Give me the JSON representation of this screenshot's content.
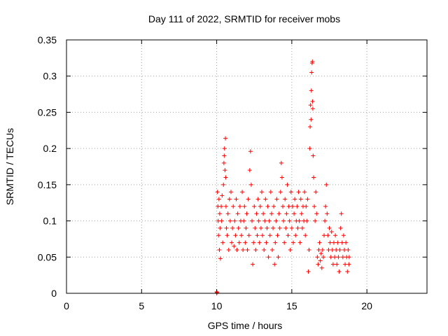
{
  "chart_data": {
    "type": "scatter",
    "title": "Day 111 of 2022, SRMTID for receiver mobs",
    "xlabel": "GPS time / hours",
    "ylabel": "SRMTID / TECUs",
    "xlim": [
      0,
      24
    ],
    "ylim": [
      0,
      0.35
    ],
    "xticks": [
      0,
      5,
      10,
      15,
      20
    ],
    "xtick_labels": [
      "0",
      "5",
      "10",
      "15",
      "20"
    ],
    "yticks": [
      0,
      0.05,
      0.1,
      0.15,
      0.2,
      0.25,
      0.3,
      0.35
    ],
    "ytick_labels": [
      "0",
      "0.05",
      "0.1",
      "0.15",
      "0.2",
      "0.25",
      "0.3",
      "0.35"
    ],
    "grid": true,
    "marker": "plus",
    "marker_color": "#ff0000",
    "series": [
      {
        "name": "SRMTID",
        "points": [
          [
            10.0,
            0.0
          ],
          [
            10.0,
            0.002
          ],
          [
            10.02,
            0.001
          ],
          [
            10.05,
            0.14
          ],
          [
            10.08,
            0.12
          ],
          [
            10.1,
            0.1
          ],
          [
            10.12,
            0.08
          ],
          [
            10.15,
            0.13
          ],
          [
            10.18,
            0.06
          ],
          [
            10.2,
            0.11
          ],
          [
            10.22,
            0.09
          ],
          [
            10.25,
            0.048
          ],
          [
            10.3,
            0.12
          ],
          [
            10.33,
            0.1
          ],
          [
            10.36,
            0.135
          ],
          [
            10.4,
            0.07
          ],
          [
            10.45,
            0.15
          ],
          [
            10.48,
            0.18
          ],
          [
            10.5,
            0.19
          ],
          [
            10.52,
            0.2
          ],
          [
            10.55,
            0.17
          ],
          [
            10.58,
            0.214
          ],
          [
            10.6,
            0.16
          ],
          [
            10.62,
            0.12
          ],
          [
            10.65,
            0.09
          ],
          [
            10.7,
            0.08
          ],
          [
            10.75,
            0.11
          ],
          [
            10.8,
            0.06
          ],
          [
            10.85,
            0.13
          ],
          [
            10.9,
            0.1
          ],
          [
            10.95,
            0.14
          ],
          [
            11.0,
            0.07
          ],
          [
            11.05,
            0.09
          ],
          [
            11.1,
            0.12
          ],
          [
            11.15,
            0.065
          ],
          [
            11.2,
            0.1
          ],
          [
            11.25,
            0.08
          ],
          [
            11.3,
            0.13
          ],
          [
            11.35,
            0.06
          ],
          [
            11.4,
            0.11
          ],
          [
            11.45,
            0.09
          ],
          [
            11.5,
            0.07
          ],
          [
            11.55,
            0.12
          ],
          [
            11.6,
            0.1
          ],
          [
            11.65,
            0.08
          ],
          [
            11.7,
            0.14
          ],
          [
            11.75,
            0.06
          ],
          [
            11.8,
            0.1
          ],
          [
            11.85,
            0.12
          ],
          [
            11.9,
            0.07
          ],
          [
            11.95,
            0.09
          ],
          [
            12.0,
            0.11
          ],
          [
            12.05,
            0.06
          ],
          [
            12.1,
            0.13
          ],
          [
            12.15,
            0.08
          ],
          [
            12.2,
            0.17
          ],
          [
            12.25,
            0.196
          ],
          [
            12.3,
            0.15
          ],
          [
            12.35,
            0.1
          ],
          [
            12.4,
            0.04
          ],
          [
            12.45,
            0.07
          ],
          [
            12.5,
            0.12
          ],
          [
            12.55,
            0.09
          ],
          [
            12.6,
            0.06
          ],
          [
            12.65,
            0.11
          ],
          [
            12.7,
            0.08
          ],
          [
            12.75,
            0.13
          ],
          [
            12.8,
            0.1
          ],
          [
            12.85,
            0.07
          ],
          [
            12.9,
            0.12
          ],
          [
            12.95,
            0.09
          ],
          [
            13.0,
            0.14
          ],
          [
            13.05,
            0.08
          ],
          [
            13.1,
            0.11
          ],
          [
            13.15,
            0.06
          ],
          [
            13.2,
            0.1
          ],
          [
            13.25,
            0.13
          ],
          [
            13.3,
            0.07
          ],
          [
            13.35,
            0.09
          ],
          [
            13.4,
            0.12
          ],
          [
            13.45,
            0.05
          ],
          [
            13.5,
            0.1
          ],
          [
            13.55,
            0.08
          ],
          [
            13.6,
            0.14
          ],
          [
            13.65,
            0.11
          ],
          [
            13.7,
            0.06
          ],
          [
            13.75,
            0.09
          ],
          [
            13.8,
            0.12
          ],
          [
            13.85,
            0.04
          ],
          [
            13.9,
            0.07
          ],
          [
            13.95,
            0.1
          ],
          [
            14.0,
            0.13
          ],
          [
            14.05,
            0.08
          ],
          [
            14.1,
            0.05
          ],
          [
            14.15,
            0.11
          ],
          [
            14.2,
            0.09
          ],
          [
            14.25,
            0.14
          ],
          [
            14.3,
            0.18
          ],
          [
            14.35,
            0.16
          ],
          [
            14.4,
            0.12
          ],
          [
            14.45,
            0.1
          ],
          [
            14.5,
            0.07
          ],
          [
            14.55,
            0.13
          ],
          [
            14.6,
            0.09
          ],
          [
            14.65,
            0.11
          ],
          [
            14.7,
            0.15
          ],
          [
            14.75,
            0.08
          ],
          [
            14.8,
            0.12
          ],
          [
            14.85,
            0.1
          ],
          [
            14.9,
            0.06
          ],
          [
            14.95,
            0.14
          ],
          [
            15.0,
            0.09
          ],
          [
            15.05,
            0.12
          ],
          [
            15.1,
            0.07
          ],
          [
            15.15,
            0.11
          ],
          [
            15.2,
            0.13
          ],
          [
            15.25,
            0.08
          ],
          [
            15.3,
            0.1
          ],
          [
            15.35,
            0.12
          ],
          [
            15.4,
            0.09
          ],
          [
            15.45,
            0.14
          ],
          [
            15.5,
            0.1
          ],
          [
            15.55,
            0.07
          ],
          [
            15.6,
            0.13
          ],
          [
            15.65,
            0.11
          ],
          [
            15.7,
            0.09
          ],
          [
            15.75,
            0.12
          ],
          [
            15.8,
            0.1
          ],
          [
            15.85,
            0.14
          ],
          [
            15.9,
            0.08
          ],
          [
            15.95,
            0.12
          ],
          [
            16.0,
            0.1
          ],
          [
            16.05,
            0.13
          ],
          [
            16.1,
            0.03
          ],
          [
            16.15,
            0.06
          ],
          [
            16.2,
            0.2
          ],
          [
            16.22,
            0.23
          ],
          [
            16.25,
            0.26
          ],
          [
            16.28,
            0.24
          ],
          [
            16.3,
            0.28
          ],
          [
            16.32,
            0.305
          ],
          [
            16.35,
            0.318
          ],
          [
            16.37,
            0.32
          ],
          [
            16.38,
            0.265
          ],
          [
            16.4,
            0.255
          ],
          [
            16.42,
            0.19
          ],
          [
            16.45,
            0.16
          ],
          [
            16.5,
            0.12
          ],
          [
            16.55,
            0.1
          ],
          [
            16.6,
            0.14
          ],
          [
            16.65,
            0.11
          ],
          [
            16.7,
            0.05
          ],
          [
            16.75,
            0.04
          ],
          [
            16.8,
            0.06
          ],
          [
            16.85,
            0.07
          ],
          [
            16.9,
            0.045
          ],
          [
            16.95,
            0.055
          ],
          [
            17.0,
            0.035
          ],
          [
            17.05,
            0.06
          ],
          [
            17.1,
            0.05
          ],
          [
            17.15,
            0.08
          ],
          [
            17.2,
            0.1
          ],
          [
            17.25,
            0.12
          ],
          [
            17.3,
            0.15
          ],
          [
            17.35,
            0.11
          ],
          [
            17.4,
            0.08
          ],
          [
            17.45,
            0.06
          ],
          [
            17.5,
            0.09
          ],
          [
            17.55,
            0.07
          ],
          [
            17.6,
            0.05
          ],
          [
            17.65,
            0.085
          ],
          [
            17.7,
            0.06
          ],
          [
            17.75,
            0.04
          ],
          [
            17.8,
            0.07
          ],
          [
            17.85,
            0.05
          ],
          [
            17.9,
            0.08
          ],
          [
            17.95,
            0.06
          ],
          [
            18.0,
            0.04
          ],
          [
            18.05,
            0.07
          ],
          [
            18.1,
            0.05
          ],
          [
            18.15,
            0.03
          ],
          [
            18.2,
            0.06
          ],
          [
            18.25,
            0.09
          ],
          [
            18.3,
            0.11
          ],
          [
            18.35,
            0.07
          ],
          [
            18.4,
            0.05
          ],
          [
            18.45,
            0.08
          ],
          [
            18.5,
            0.06
          ],
          [
            18.55,
            0.04
          ],
          [
            18.6,
            0.07
          ],
          [
            18.65,
            0.05
          ],
          [
            18.7,
            0.03
          ],
          [
            18.75,
            0.06
          ],
          [
            18.8,
            0.04
          ],
          [
            18.82,
            0.05
          ]
        ]
      }
    ]
  }
}
